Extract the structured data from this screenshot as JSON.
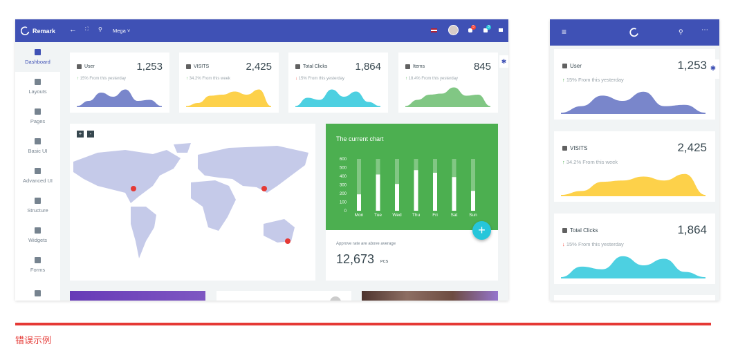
{
  "app": {
    "brand": "Remark",
    "mega_label": "Mega",
    "notif_badge": "5",
    "msg_badge": "3"
  },
  "sidebar": {
    "items": [
      {
        "label": "Dashboard",
        "icon": "dashboard-icon",
        "active": true
      },
      {
        "label": "Layouts",
        "icon": "layouts-icon"
      },
      {
        "label": "Pages",
        "icon": "pages-icon"
      },
      {
        "label": "Basic UI",
        "icon": "palette-icon"
      },
      {
        "label": "Advanced UI",
        "icon": "paint-bucket-icon"
      },
      {
        "label": "Structure",
        "icon": "puzzle-icon"
      },
      {
        "label": "Widgets",
        "icon": "widgets-icon"
      },
      {
        "label": "Forms",
        "icon": "forms-icon"
      },
      {
        "label": "",
        "icon": "table-icon"
      }
    ]
  },
  "stats": [
    {
      "label": "User",
      "value": "1,253",
      "change": "15% From this yesterday",
      "trend": "up",
      "color": "#7986cb",
      "icon": "user-icon"
    },
    {
      "label": "VISITS",
      "value": "2,425",
      "change": "34.2% From this week",
      "trend": "up",
      "color": "#fdd14a",
      "icon": "flash-icon"
    },
    {
      "label": "Total Clicks",
      "value": "1,864",
      "change": "15% From this yesterday",
      "trend": "down",
      "color": "#4dd0e1",
      "icon": "bar-chart-icon"
    },
    {
      "label": "Items",
      "value": "845",
      "change": "18.4% From this yesterday",
      "trend": "up",
      "color": "#81c784",
      "icon": "list-icon"
    }
  ],
  "map": {
    "zoom_in": "+",
    "zoom_out": "-"
  },
  "current_chart": {
    "title": "The current chart",
    "fab": "+",
    "approve_text": "Approve rate are above average",
    "total": "12,673",
    "unit": "PCS"
  },
  "chart_data": {
    "type": "bar",
    "title": "The current chart",
    "categories": [
      "Mon",
      "Tue",
      "Wed",
      "Thu",
      "Fri",
      "Sat",
      "Sun"
    ],
    "values": [
      190,
      420,
      310,
      470,
      440,
      390,
      230
    ],
    "yticks": [
      "600",
      "500",
      "400",
      "300",
      "200",
      "100",
      "0"
    ],
    "ylim": [
      0,
      600
    ],
    "bar_color": "#ffffff",
    "background": "#4caf50"
  },
  "caption": {
    "text": "错误示例",
    "color": "#e53935"
  }
}
